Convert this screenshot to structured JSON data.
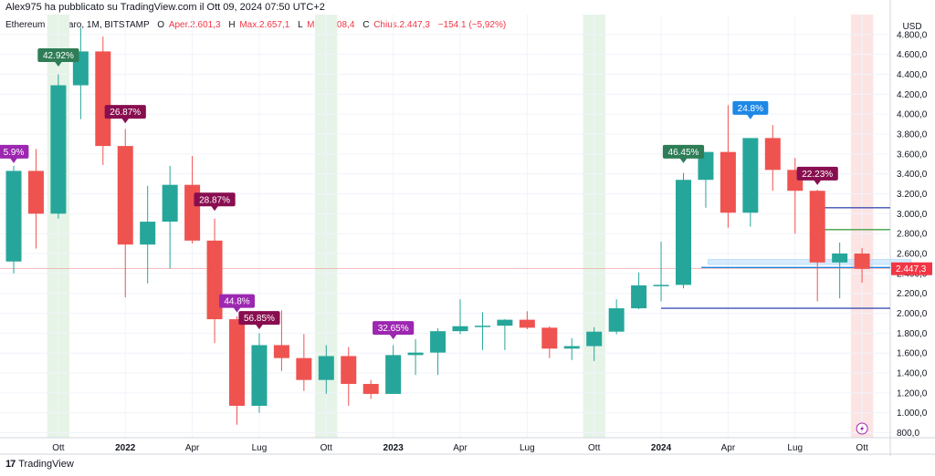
{
  "header": {
    "published_by": "Alex975 ha pubblicato su TradingView.com il Ott 09, 2024 07:50 UTC+2"
  },
  "legend": {
    "symbol": "Ethereum / Dollaro, 1M, BITSTAMP",
    "open_label": "O",
    "open_value": "Aper.2.601,3",
    "high_label": "H",
    "high_value": "Max.2.657,1",
    "low_label": "L",
    "low_value": "Min.2.308,4",
    "close_label": "C",
    "close_value": "Chius.2.447,3",
    "change": "−154,1 (−5,92%)"
  },
  "brand": {
    "name": "TradingView",
    "logo_text": "17"
  },
  "colors": {
    "up": "#26a69a",
    "down": "#ef5350",
    "highlight_green": "#e6f4e8",
    "highlight_red": "#fde4e4"
  },
  "chart_data": {
    "type": "candlestick",
    "currency": "USD",
    "last_price_label": "2.447,3",
    "ylim": [
      750,
      5000
    ],
    "y_ticks": [
      "800,0",
      "1.000,0",
      "1.200,0",
      "1.400,0",
      "1.600,0",
      "1.800,0",
      "2.000,0",
      "2.200,0",
      "2.400,0",
      "2.600,0",
      "2.800,0",
      "3.000,0",
      "3.200,0",
      "3.400,0",
      "3.600,0",
      "3.800,0",
      "4.000,0",
      "4.200,0",
      "4.400,0",
      "4.600,0",
      "4.800,0"
    ],
    "y_tick_values": [
      800,
      1000,
      1200,
      1400,
      1600,
      1800,
      2000,
      2200,
      2400,
      2600,
      2800,
      3000,
      3200,
      3400,
      3600,
      3800,
      4000,
      4200,
      4400,
      4600,
      4800
    ],
    "x_ticks": [
      {
        "label": "Ott",
        "index": 2,
        "bold": false
      },
      {
        "label": "2022",
        "index": 5,
        "bold": true
      },
      {
        "label": "Apr",
        "index": 8,
        "bold": false
      },
      {
        "label": "Lug",
        "index": 11,
        "bold": false
      },
      {
        "label": "Ott",
        "index": 14,
        "bold": false
      },
      {
        "label": "2023",
        "index": 17,
        "bold": true
      },
      {
        "label": "Apr",
        "index": 20,
        "bold": false
      },
      {
        "label": "Lug",
        "index": 23,
        "bold": false
      },
      {
        "label": "Ott",
        "index": 26,
        "bold": false
      },
      {
        "label": "2024",
        "index": 29,
        "bold": true
      },
      {
        "label": "Apr",
        "index": 32,
        "bold": false
      },
      {
        "label": "Lug",
        "index": 35,
        "bold": false
      },
      {
        "label": "Ott",
        "index": 38,
        "bold": false
      }
    ],
    "highlight_columns": [
      {
        "index": 2,
        "kind": "green"
      },
      {
        "index": 14,
        "kind": "green"
      },
      {
        "index": 26,
        "kind": "green"
      },
      {
        "index": 38,
        "kind": "red"
      }
    ],
    "candles": [
      {
        "o": 2520,
        "h": 3480,
        "l": 2400,
        "c": 3430
      },
      {
        "o": 3430,
        "h": 3650,
        "l": 2650,
        "c": 3000
      },
      {
        "o": 3000,
        "h": 4400,
        "l": 2950,
        "c": 4290
      },
      {
        "o": 4290,
        "h": 4870,
        "l": 3950,
        "c": 4630
      },
      {
        "o": 4630,
        "h": 4780,
        "l": 3490,
        "c": 3680
      },
      {
        "o": 3680,
        "h": 3850,
        "l": 2160,
        "c": 2690
      },
      {
        "o": 2690,
        "h": 3280,
        "l": 2300,
        "c": 2920
      },
      {
        "o": 2920,
        "h": 3480,
        "l": 2450,
        "c": 3290
      },
      {
        "o": 3290,
        "h": 3580,
        "l": 2700,
        "c": 2730
      },
      {
        "o": 2730,
        "h": 2950,
        "l": 1700,
        "c": 1940
      },
      {
        "o": 1940,
        "h": 1970,
        "l": 880,
        "c": 1070
      },
      {
        "o": 1070,
        "h": 1800,
        "l": 1000,
        "c": 1680
      },
      {
        "o": 1680,
        "h": 2030,
        "l": 1420,
        "c": 1550
      },
      {
        "o": 1550,
        "h": 1790,
        "l": 1220,
        "c": 1330
      },
      {
        "o": 1330,
        "h": 1680,
        "l": 1190,
        "c": 1570
      },
      {
        "o": 1570,
        "h": 1660,
        "l": 1070,
        "c": 1290
      },
      {
        "o": 1290,
        "h": 1330,
        "l": 1140,
        "c": 1190
      },
      {
        "o": 1190,
        "h": 1680,
        "l": 1190,
        "c": 1580
      },
      {
        "o": 1580,
        "h": 1740,
        "l": 1380,
        "c": 1605
      },
      {
        "o": 1605,
        "h": 1850,
        "l": 1380,
        "c": 1820
      },
      {
        "o": 1820,
        "h": 2140,
        "l": 1790,
        "c": 1870
      },
      {
        "o": 1870,
        "h": 2010,
        "l": 1630,
        "c": 1875
      },
      {
        "o": 1875,
        "h": 1940,
        "l": 1630,
        "c": 1935
      },
      {
        "o": 1935,
        "h": 2020,
        "l": 1840,
        "c": 1855
      },
      {
        "o": 1855,
        "h": 1870,
        "l": 1550,
        "c": 1645
      },
      {
        "o": 1645,
        "h": 1750,
        "l": 1530,
        "c": 1670
      },
      {
        "o": 1670,
        "h": 1860,
        "l": 1520,
        "c": 1815
      },
      {
        "o": 1815,
        "h": 2140,
        "l": 1790,
        "c": 2050
      },
      {
        "o": 2050,
        "h": 2410,
        "l": 2040,
        "c": 2280
      },
      {
        "o": 2280,
        "h": 2720,
        "l": 2120,
        "c": 2285
      },
      {
        "o": 2285,
        "h": 3410,
        "l": 2250,
        "c": 3340
      },
      {
        "o": 3340,
        "h": 3620,
        "l": 3060,
        "c": 3620
      },
      {
        "o": 3620,
        "h": 4090,
        "l": 2860,
        "c": 3010
      },
      {
        "o": 3010,
        "h": 3730,
        "l": 2870,
        "c": 3760
      },
      {
        "o": 3760,
        "h": 3890,
        "l": 3230,
        "c": 3440
      },
      {
        "o": 3440,
        "h": 3560,
        "l": 2800,
        "c": 3230
      },
      {
        "o": 3230,
        "h": 3240,
        "l": 2120,
        "c": 2510
      },
      {
        "o": 2510,
        "h": 2710,
        "l": 2150,
        "c": 2600
      },
      {
        "o": 2600,
        "h": 2657,
        "l": 2308,
        "c": 2447
      }
    ],
    "labels": [
      {
        "index": 0,
        "text": "5.9%",
        "anchor": 3490,
        "color": "#9c27b0",
        "pointer": "down"
      },
      {
        "index": 2,
        "text": "42.92%",
        "anchor": 4460,
        "color": "#2e7d57",
        "pointer": "down"
      },
      {
        "index": 5,
        "text": "26.87%",
        "anchor": 3890,
        "color": "#880e4f",
        "pointer": "down"
      },
      {
        "index": 9,
        "text": "28.87%",
        "anchor": 3010,
        "color": "#880e4f",
        "pointer": "down"
      },
      {
        "index": 10,
        "text": "44.8%",
        "anchor": 1990,
        "color": "#9c27b0",
        "pointer": "down"
      },
      {
        "index": 11,
        "text": "56.85%",
        "anchor": 1820,
        "color": "#880e4f",
        "pointer": "down"
      },
      {
        "index": 17,
        "text": "32.65%",
        "anchor": 1720,
        "color": "#9c27b0",
        "pointer": "down"
      },
      {
        "index": 30,
        "text": "46.45%",
        "anchor": 3490,
        "color": "#2e7d57",
        "pointer": "down"
      },
      {
        "index": 33,
        "text": "24.8%",
        "anchor": 3930,
        "color": "#1e88e5",
        "pointer": "down"
      },
      {
        "index": 36,
        "text": "22.23%",
        "anchor": 3270,
        "color": "#880e4f",
        "pointer": "down"
      }
    ],
    "hlines": [
      {
        "y": 3060,
        "from": 36.0,
        "to": 40.2,
        "color": "#3f51b5"
      },
      {
        "y": 2840,
        "from": 36.0,
        "to": 40.2,
        "color": "#43a047"
      },
      {
        "y": 2460,
        "from": 30.8,
        "to": 40.2,
        "color": "#1e88e5"
      },
      {
        "y": 2050,
        "from": 29.0,
        "to": 40.2,
        "color": "#3f51b5"
      }
    ],
    "zone": {
      "y1": 2490,
      "y2": 2540,
      "from": 31.1,
      "to": 40.2,
      "color": "#bbdefb"
    },
    "price_line": {
      "y": 2447
    }
  }
}
